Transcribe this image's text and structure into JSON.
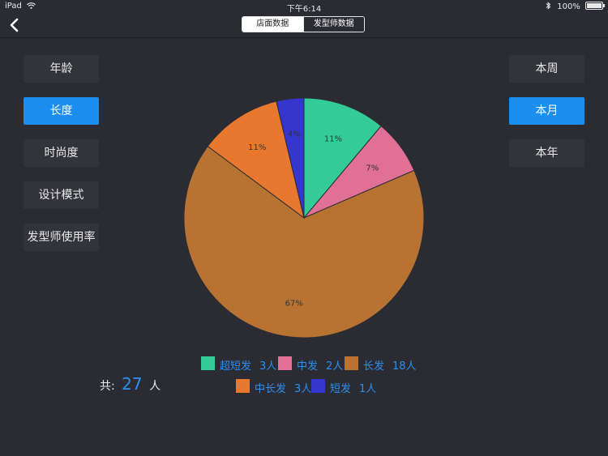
{
  "status_bar": {
    "device": "iPad",
    "time": "下午6:14",
    "battery": "100%"
  },
  "nav": {
    "tabs": [
      {
        "label": "店面数据"
      },
      {
        "label": "发型师数据"
      }
    ]
  },
  "left_menu": {
    "items": [
      {
        "label": "年龄"
      },
      {
        "label": "长度"
      },
      {
        "label": "时尚度"
      },
      {
        "label": "设计模式"
      },
      {
        "label": "发型师使用率"
      }
    ],
    "selected": 1
  },
  "right_menu": {
    "items": [
      {
        "label": "本周"
      },
      {
        "label": "本月"
      },
      {
        "label": "本年"
      }
    ],
    "selected": 1
  },
  "chart_data": {
    "type": "pie",
    "title": "",
    "slices": [
      {
        "name": "超短发",
        "count": 3,
        "count_label": "3人",
        "label": "11%",
        "color": "#33cc99"
      },
      {
        "name": "中发",
        "count": 2,
        "count_label": "2人",
        "label": "7%",
        "color": "#e07095"
      },
      {
        "name": "长发",
        "count": 18,
        "count_label": "18人",
        "label": "67%",
        "color": "#b87333"
      },
      {
        "name": "中长发",
        "count": 3,
        "count_label": "3人",
        "label": "11%",
        "color": "#e8782e"
      },
      {
        "name": "短发",
        "count": 1,
        "count_label": "1人",
        "label": "4%",
        "color": "#3535d0"
      }
    ]
  },
  "summary": {
    "prefix": "共:",
    "total": "27",
    "unit": "人"
  }
}
